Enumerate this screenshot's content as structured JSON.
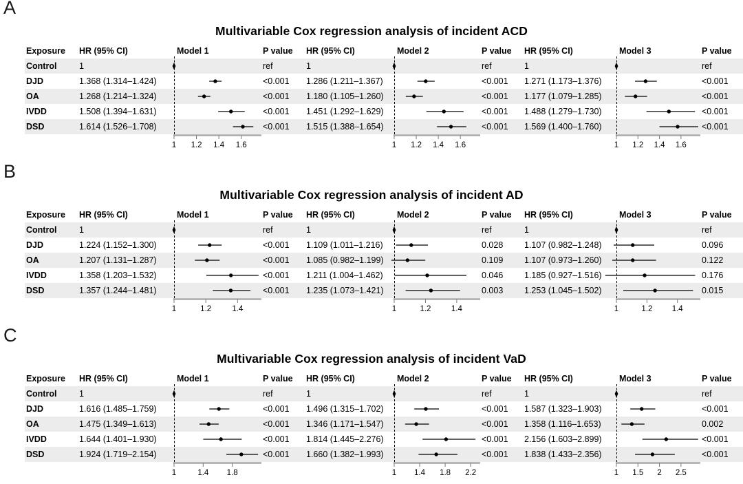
{
  "column_headers": {
    "exposure": "Exposure",
    "hr": "HR (95% CI)",
    "p": "P value"
  },
  "colors": {
    "stripe": "#ececec",
    "axis_line": "#a9a9a9",
    "marker": "#000000",
    "tick": "#777777"
  },
  "chart_data": [
    {
      "type": "forest",
      "panel_label": "A",
      "title": "Multivariable Cox regression analysis of incident ACD",
      "exposures": [
        "Control",
        "DJD",
        "OA",
        "IVDD",
        "DSD"
      ],
      "models": [
        {
          "name": "Model 1",
          "xlim": [
            1,
            1.78
          ],
          "ticks": [
            "1",
            "1.2",
            "1.4",
            "1.6"
          ]
        },
        {
          "name": "Model 2",
          "xlim": [
            1,
            1.78
          ],
          "ticks": [
            "1",
            "1.2",
            "1.4",
            "1.6"
          ]
        },
        {
          "name": "Model 3",
          "xlim": [
            1,
            1.78
          ],
          "ticks": [
            "1",
            "1.2",
            "1.4",
            "1.6"
          ]
        }
      ],
      "rows": [
        {
          "exposure": "Control",
          "cells": [
            {
              "ref": true,
              "hr_text": "1",
              "p": "ref"
            },
            {
              "ref": true,
              "hr_text": "1",
              "p": "ref"
            },
            {
              "ref": true,
              "hr_text": "1",
              "p": "ref"
            }
          ]
        },
        {
          "exposure": "DJD",
          "cells": [
            {
              "hr": 1.368,
              "lo": 1.314,
              "hi": 1.424,
              "hr_text": "1.368 (1.314–1.424)",
              "p": "<0.001"
            },
            {
              "hr": 1.286,
              "lo": 1.211,
              "hi": 1.367,
              "hr_text": "1.286 (1.211–1.367)",
              "p": "<0.001"
            },
            {
              "hr": 1.271,
              "lo": 1.173,
              "hi": 1.376,
              "hr_text": "1.271 (1.173–1.376)",
              "p": "<0.001"
            }
          ]
        },
        {
          "exposure": "OA",
          "cells": [
            {
              "hr": 1.268,
              "lo": 1.214,
              "hi": 1.324,
              "hr_text": "1.268 (1.214–1.324)",
              "p": "<0.001"
            },
            {
              "hr": 1.18,
              "lo": 1.105,
              "hi": 1.26,
              "hr_text": "1.180 (1.105–1.260)",
              "p": "<0.001"
            },
            {
              "hr": 1.177,
              "lo": 1.079,
              "hi": 1.285,
              "hr_text": "1.177 (1.079–1.285)",
              "p": "<0.001"
            }
          ]
        },
        {
          "exposure": "IVDD",
          "cells": [
            {
              "hr": 1.508,
              "lo": 1.394,
              "hi": 1.631,
              "hr_text": "1.508 (1.394–1.631)",
              "p": "<0.001"
            },
            {
              "hr": 1.451,
              "lo": 1.292,
              "hi": 1.629,
              "hr_text": "1.451 (1.292–1.629)",
              "p": "<0.001"
            },
            {
              "hr": 1.488,
              "lo": 1.279,
              "hi": 1.73,
              "hr_text": "1.488 (1.279–1.730)",
              "p": "<0.001"
            }
          ]
        },
        {
          "exposure": "DSD",
          "cells": [
            {
              "hr": 1.614,
              "lo": 1.526,
              "hi": 1.708,
              "hr_text": "1.614 (1.526–1.708)",
              "p": "<0.001"
            },
            {
              "hr": 1.515,
              "lo": 1.388,
              "hi": 1.654,
              "hr_text": "1.515 (1.388–1.654)",
              "p": "<0.001"
            },
            {
              "hr": 1.569,
              "lo": 1.4,
              "hi": 1.76,
              "hr_text": "1.569 (1.400–1.760)",
              "p": "<0.001"
            }
          ]
        }
      ]
    },
    {
      "type": "forest",
      "panel_label": "B",
      "title": "Multivariable Cox regression analysis of incident AD",
      "exposures": [
        "Control",
        "DJD",
        "OA",
        "IVDD",
        "DSD"
      ],
      "models": [
        {
          "name": "Model 1",
          "xlim": [
            1,
            1.55
          ],
          "ticks": [
            "1",
            "1.2",
            "1.4"
          ]
        },
        {
          "name": "Model 2",
          "xlim": [
            1,
            1.55
          ],
          "ticks": [
            "1",
            "1.2",
            "1.4"
          ]
        },
        {
          "name": "Model 3",
          "xlim": [
            1,
            1.55
          ],
          "ticks": [
            "1",
            "1.2",
            "1.4"
          ]
        }
      ],
      "rows": [
        {
          "exposure": "Control",
          "cells": [
            {
              "ref": true,
              "hr_text": "1",
              "p": "ref"
            },
            {
              "ref": true,
              "hr_text": "1",
              "p": "ref"
            },
            {
              "ref": true,
              "hr_text": "1",
              "p": "ref"
            }
          ]
        },
        {
          "exposure": "DJD",
          "cells": [
            {
              "hr": 1.224,
              "lo": 1.152,
              "hi": 1.3,
              "hr_text": "1.224 (1.152–1.300)",
              "p": "<0.001"
            },
            {
              "hr": 1.109,
              "lo": 1.011,
              "hi": 1.216,
              "hr_text": "1.109 (1.011–1.216)",
              "p": "0.028"
            },
            {
              "hr": 1.107,
              "lo": 0.982,
              "hi": 1.248,
              "hr_text": "1.107 (0.982–1.248)",
              "p": "0.096"
            }
          ]
        },
        {
          "exposure": "OA",
          "cells": [
            {
              "hr": 1.207,
              "lo": 1.131,
              "hi": 1.287,
              "hr_text": "1.207 (1.131–1.287)",
              "p": "<0.001"
            },
            {
              "hr": 1.085,
              "lo": 0.982,
              "hi": 1.199,
              "hr_text": "1.085 (0.982–1.199)",
              "p": "0.109"
            },
            {
              "hr": 1.107,
              "lo": 0.973,
              "hi": 1.26,
              "hr_text": "1.107 (0.973–1.260)",
              "p": "0.122"
            }
          ]
        },
        {
          "exposure": "IVDD",
          "cells": [
            {
              "hr": 1.358,
              "lo": 1.203,
              "hi": 1.532,
              "hr_text": "1.358 (1.203–1.532)",
              "p": "<0.001"
            },
            {
              "hr": 1.211,
              "lo": 1.004,
              "hi": 1.462,
              "hr_text": "1.211 (1.004–1.462)",
              "p": "0.046"
            },
            {
              "hr": 1.185,
              "lo": 0.927,
              "hi": 1.516,
              "hr_text": "1.185 (0.927–1.516)",
              "p": "0.176"
            }
          ]
        },
        {
          "exposure": "DSD",
          "cells": [
            {
              "hr": 1.357,
              "lo": 1.244,
              "hi": 1.481,
              "hr_text": "1.357 (1.244–1.481)",
              "p": "<0.001"
            },
            {
              "hr": 1.235,
              "lo": 1.073,
              "hi": 1.421,
              "hr_text": "1.235 (1.073–1.421)",
              "p": "0.003"
            },
            {
              "hr": 1.253,
              "lo": 1.045,
              "hi": 1.502,
              "hr_text": "1.253 (1.045–1.502)",
              "p": "0.015"
            }
          ]
        }
      ]
    },
    {
      "type": "forest",
      "panel_label": "C",
      "title": "Multivariable Cox regression analysis of incident VaD",
      "exposures": [
        "Control",
        "DJD",
        "OA",
        "IVDD",
        "DSD"
      ],
      "models": [
        {
          "name": "Model 1",
          "xlim": [
            1,
            2.2
          ],
          "ticks": [
            "1",
            "1.4",
            "1.8"
          ]
        },
        {
          "name": "Model 2",
          "xlim": [
            1,
            2.35
          ],
          "ticks": [
            "1",
            "1.4",
            "1.8",
            "2.2"
          ]
        },
        {
          "name": "Model 3",
          "xlim": [
            1,
            2.95
          ],
          "ticks": [
            "1",
            "1.5",
            "2",
            "2.5"
          ]
        }
      ],
      "rows": [
        {
          "exposure": "Control",
          "cells": [
            {
              "ref": true,
              "hr_text": "1",
              "p": "ref"
            },
            {
              "ref": true,
              "hr_text": "1",
              "p": "ref"
            },
            {
              "ref": true,
              "hr_text": "1",
              "p": "ref"
            }
          ]
        },
        {
          "exposure": "DJD",
          "cells": [
            {
              "hr": 1.616,
              "lo": 1.485,
              "hi": 1.759,
              "hr_text": "1.616 (1.485–1.759)",
              "p": "<0.001"
            },
            {
              "hr": 1.496,
              "lo": 1.315,
              "hi": 1.702,
              "hr_text": "1.496 (1.315–1.702)",
              "p": "<0.001"
            },
            {
              "hr": 1.587,
              "lo": 1.323,
              "hi": 1.903,
              "hr_text": "1.587 (1.323–1.903)",
              "p": "<0.001"
            }
          ]
        },
        {
          "exposure": "OA",
          "cells": [
            {
              "hr": 1.475,
              "lo": 1.349,
              "hi": 1.613,
              "hr_text": "1.475 (1.349–1.613)",
              "p": "<0.001"
            },
            {
              "hr": 1.346,
              "lo": 1.171,
              "hi": 1.547,
              "hr_text": "1.346 (1.171–1.547)",
              "p": "<0.001"
            },
            {
              "hr": 1.358,
              "lo": 1.116,
              "hi": 1.653,
              "hr_text": "1.358 (1.116–1.653)",
              "p": "0.002"
            }
          ]
        },
        {
          "exposure": "IVDD",
          "cells": [
            {
              "hr": 1.644,
              "lo": 1.401,
              "hi": 1.93,
              "hr_text": "1.644 (1.401–1.930)",
              "p": "<0.001"
            },
            {
              "hr": 1.814,
              "lo": 1.445,
              "hi": 2.276,
              "hr_text": "1.814 (1.445–2.276)",
              "p": "<0.001"
            },
            {
              "hr": 2.156,
              "lo": 1.603,
              "hi": 2.899,
              "hr_text": "2.156 (1.603–2.899)",
              "p": "<0.001"
            }
          ]
        },
        {
          "exposure": "DSD",
          "cells": [
            {
              "hr": 1.924,
              "lo": 1.719,
              "hi": 2.154,
              "hr_text": "1.924 (1.719–2.154)",
              "p": "<0.001"
            },
            {
              "hr": 1.66,
              "lo": 1.382,
              "hi": 1.993,
              "hr_text": "1.660 (1.382–1.993)",
              "p": "<0.001"
            },
            {
              "hr": 1.838,
              "lo": 1.433,
              "hi": 2.356,
              "hr_text": "1.838 (1.433–2.356)",
              "p": "<0.001"
            }
          ]
        }
      ]
    }
  ]
}
